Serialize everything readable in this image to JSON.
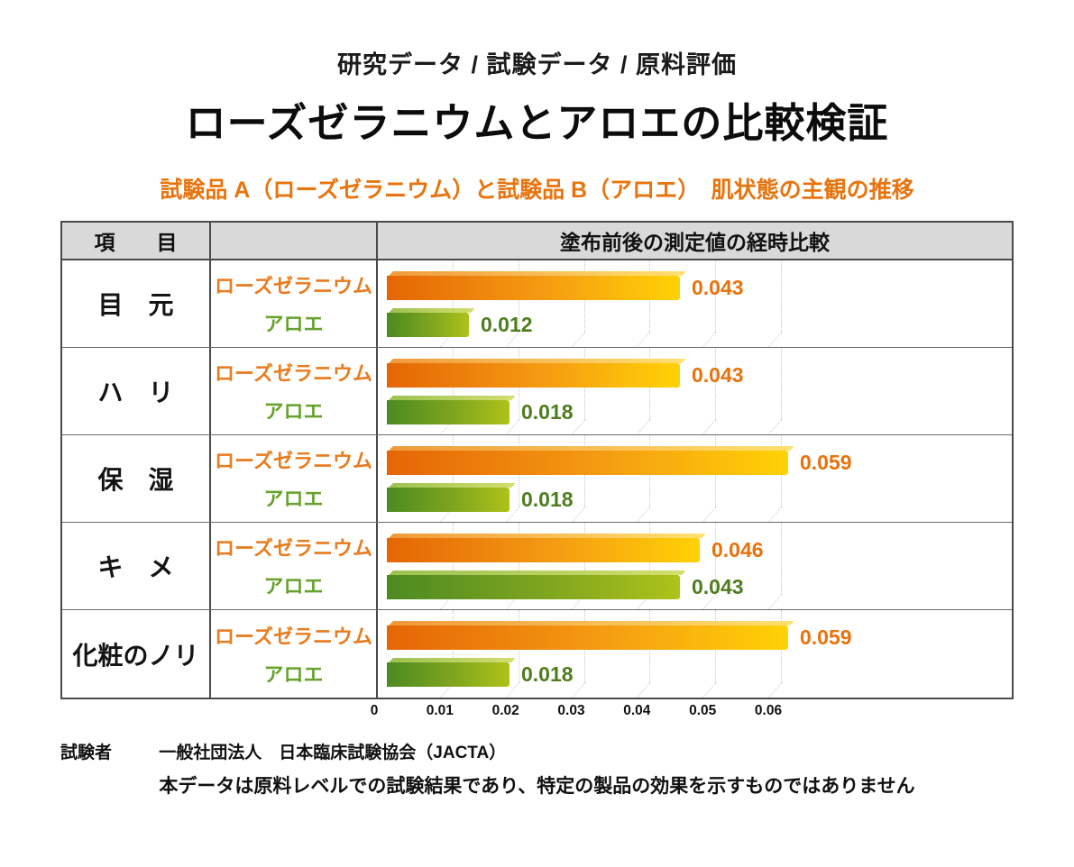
{
  "header": {
    "kicker": "研究データ / 試験データ / 原料評価",
    "title": "ローズゼラニウムとアロエの比較検証",
    "subtitle": "試験品 A（ローズゼラニウム）と試験品 B（アロエ）　肌状態の主観の推移"
  },
  "table": {
    "item_column_header": "項　　目",
    "chart_column_header": "塗布前後の測定値の経時比較"
  },
  "chart_data": {
    "type": "bar",
    "orientation": "horizontal",
    "categories": [
      "目　元",
      "ハ　リ",
      "保　湿",
      "キ　メ",
      "化粧のノリ"
    ],
    "series": [
      {
        "name": "ローズゼラニウム",
        "color": "#e8720c",
        "values": [
          0.043,
          0.043,
          0.059,
          0.046,
          0.059
        ]
      },
      {
        "name": "アロエ",
        "color": "#5d9426",
        "values": [
          0.012,
          0.018,
          0.018,
          0.043,
          0.018
        ]
      }
    ],
    "xlim": [
      0,
      0.06
    ],
    "tick_labels": [
      "0",
      "0.01",
      "0.02",
      "0.03",
      "0.04",
      "0.05",
      "0.06"
    ],
    "tick_values": [
      0,
      0.01,
      0.02,
      0.03,
      0.04,
      0.05,
      0.06
    ],
    "grid": "dotted-vertical",
    "legend_position": "left-column",
    "value_labels": "right-of-bar"
  },
  "colors": {
    "subtitle_orange": "#e8740e",
    "header_bg": "#d9d9d9",
    "series_a_gradient": [
      "#e56505",
      "#ffd205"
    ],
    "series_b_gradient": [
      "#4c8a21",
      "#aec31a"
    ],
    "series_a_text": "#e8720c",
    "series_b_text": "#4f7d1e",
    "gridline": "#c7c7c7"
  },
  "footer": {
    "tester_label": "試験者",
    "tester_value": "一般社団法人　日本臨床試験協会（JACTA）",
    "disclaimer": "本データは原料レベルでの試験結果であり、特定の製品の効果を示すものではありません"
  }
}
